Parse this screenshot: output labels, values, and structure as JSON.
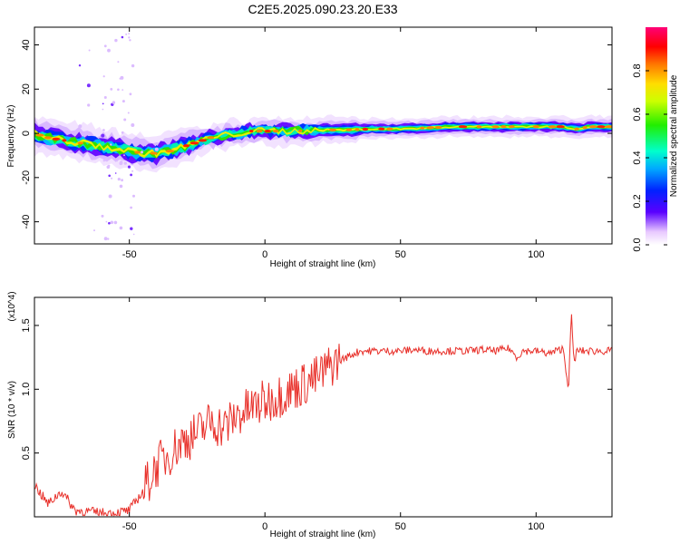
{
  "figure": {
    "title": "C2E5.2025.090.23.20.E33"
  },
  "chart_data": [
    {
      "type": "heatmap",
      "xlabel": "Height of straight line (km)",
      "ylabel": "Frequency (Hz)",
      "xlim": [
        -85,
        128
      ],
      "ylim": [
        -50,
        48
      ],
      "xticks": [
        -50,
        0,
        50,
        100
      ],
      "yticks": [
        -40,
        -20,
        0,
        20,
        40
      ],
      "colorbar": {
        "label": "Normalized spectral amplitude",
        "range": [
          0.0,
          1.0
        ],
        "ticks": [
          "0.0",
          "0.2",
          "0.4",
          "0.6",
          "0.8"
        ]
      },
      "ridge": {
        "x": [
          -85,
          -80,
          -75,
          -70,
          -65,
          -60,
          -55,
          -50,
          -45,
          -40,
          -35,
          -30,
          -25,
          -20,
          -15,
          -10,
          -5,
          0,
          10,
          20,
          30,
          40,
          50,
          60,
          70,
          80,
          90,
          100,
          110,
          115,
          120,
          128
        ],
        "y": [
          0,
          -2,
          -3,
          -4,
          -5,
          -6,
          -7,
          -8,
          -9,
          -9,
          -8,
          -6,
          -4,
          -2,
          -1,
          0,
          1,
          1,
          1,
          1.5,
          1.5,
          2,
          2,
          2.5,
          3,
          3,
          3,
          3,
          3,
          2,
          3,
          3
        ]
      }
    },
    {
      "type": "line",
      "xlabel": "Height of straight line (km)",
      "ylabel": "SNR (10 * v/v)",
      "y_multiplier": "(x10^4)",
      "xlim": [
        -85,
        128
      ],
      "ylim": [
        0,
        1.72
      ],
      "xticks": [
        -50,
        0,
        50,
        100
      ],
      "yticks": [
        0.5,
        1.0,
        1.5
      ],
      "series": [
        {
          "x": [
            -85,
            -80,
            -75,
            -70,
            -65,
            -60,
            -55,
            -50,
            -45,
            -40,
            -35,
            -30,
            -25,
            -20,
            -15,
            -10,
            -5,
            0,
            5,
            10,
            15,
            20,
            25,
            30,
            35,
            40,
            45,
            50,
            55,
            60,
            65,
            70,
            75,
            80,
            85,
            90,
            93,
            95,
            100,
            105,
            110,
            112,
            113,
            114,
            115,
            120,
            128
          ],
          "y": [
            0.25,
            0.1,
            0.2,
            0.05,
            0.04,
            0.03,
            0.03,
            0.05,
            0.2,
            0.4,
            0.5,
            0.6,
            0.65,
            0.75,
            0.7,
            0.8,
            0.85,
            0.9,
            0.95,
            1.0,
            1.05,
            1.1,
            1.2,
            1.25,
            1.3,
            1.3,
            1.3,
            1.3,
            1.31,
            1.3,
            1.3,
            1.3,
            1.3,
            1.31,
            1.3,
            1.32,
            1.25,
            1.3,
            1.3,
            1.28,
            1.32,
            1.0,
            1.6,
            1.2,
            1.3,
            1.3,
            1.3
          ]
        }
      ]
    }
  ]
}
